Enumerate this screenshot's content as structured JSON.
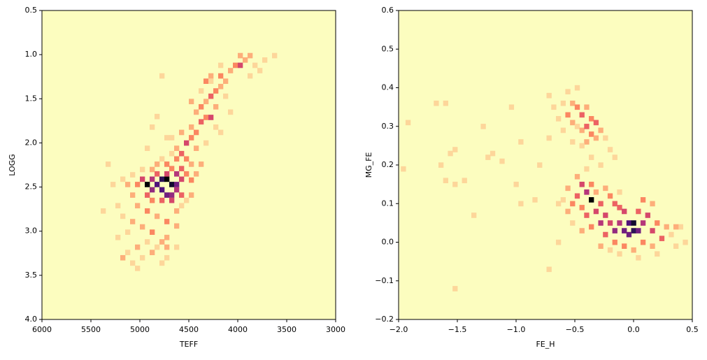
{
  "chart_data": [
    {
      "type": "hist2d",
      "xlabel": "TEFF",
      "ylabel": "LOGG",
      "xlim": [
        6000,
        3000
      ],
      "ylim": [
        4.0,
        0.5
      ],
      "xticks": [
        6000,
        5500,
        5000,
        4500,
        4000,
        3500,
        3000
      ],
      "yticks": [
        0.5,
        {
          "value": 1.0,
          "label": "1.0"
        },
        1.5,
        {
          "value": 2.0,
          "label": "2.0"
        },
        2.5,
        {
          "value": 3.0,
          "label": "3.0"
        },
        3.5,
        {
          "value": 4.0,
          "label": "4.0"
        }
      ],
      "xbin": 50,
      "ybin": 0.0583,
      "vmin": 0,
      "vmax": 12,
      "colorscale": [
        "#fcfdbf",
        "#fec287",
        "#fb8761",
        "#e55064",
        "#b5367a",
        "#812581",
        "#4f127b",
        "#1c1044",
        "#000004"
      ],
      "cells": [
        [
          4925,
          2.47,
          12
        ],
        [
          4825,
          2.47,
          9
        ],
        [
          4775,
          2.41,
          10
        ],
        [
          4725,
          2.41,
          12
        ],
        [
          4675,
          2.47,
          11
        ],
        [
          4625,
          2.47,
          8
        ],
        [
          4875,
          2.53,
          7
        ],
        [
          4775,
          2.53,
          9
        ],
        [
          4725,
          2.59,
          8
        ],
        [
          4675,
          2.59,
          7
        ],
        [
          4625,
          2.53,
          6
        ],
        [
          4975,
          2.41,
          5
        ],
        [
          4875,
          2.41,
          6
        ],
        [
          4575,
          2.41,
          5
        ],
        [
          4625,
          2.35,
          6
        ],
        [
          4725,
          2.35,
          5
        ],
        [
          4825,
          2.35,
          4
        ],
        [
          4575,
          2.59,
          4
        ],
        [
          4925,
          2.59,
          4
        ],
        [
          5025,
          2.47,
          3
        ],
        [
          4675,
          2.65,
          5
        ],
        [
          4775,
          2.65,
          4
        ],
        [
          4875,
          2.65,
          3
        ],
        [
          4575,
          2.29,
          4
        ],
        [
          4525,
          2.35,
          3
        ],
        [
          4675,
          2.29,
          3
        ],
        [
          5075,
          2.59,
          2
        ],
        [
          5125,
          2.47,
          2
        ],
        [
          5175,
          2.41,
          1
        ],
        [
          5025,
          2.71,
          2
        ],
        [
          4925,
          2.77,
          3
        ],
        [
          4825,
          2.83,
          2
        ],
        [
          4725,
          2.89,
          3
        ],
        [
          5075,
          2.89,
          2
        ],
        [
          4975,
          2.95,
          2
        ],
        [
          4875,
          3.01,
          3
        ],
        [
          4725,
          3.07,
          2
        ],
        [
          4775,
          3.12,
          2
        ],
        [
          4925,
          3.12,
          1
        ],
        [
          5025,
          3.18,
          2
        ],
        [
          5125,
          3.24,
          1
        ],
        [
          5175,
          3.3,
          2
        ],
        [
          4875,
          3.24,
          2
        ],
        [
          4725,
          3.3,
          1
        ],
        [
          5075,
          3.36,
          1
        ],
        [
          5025,
          3.42,
          1
        ],
        [
          4975,
          3.3,
          1
        ],
        [
          4625,
          2.77,
          2
        ],
        [
          4825,
          3.18,
          1
        ],
        [
          5125,
          3.01,
          1
        ],
        [
          5175,
          2.83,
          1
        ],
        [
          5325,
          2.24,
          1
        ],
        [
          5275,
          2.47,
          1
        ],
        [
          5375,
          2.77,
          1
        ],
        [
          5225,
          2.71,
          1
        ],
        [
          5225,
          3.07,
          1
        ],
        [
          4625,
          3.18,
          1
        ],
        [
          4625,
          2.18,
          3
        ],
        [
          4575,
          2.12,
          4
        ],
        [
          4525,
          2.18,
          3
        ],
        [
          4475,
          2.24,
          2
        ],
        [
          4625,
          2.06,
          2
        ],
        [
          4525,
          2.0,
          5
        ],
        [
          4475,
          1.94,
          3
        ],
        [
          4425,
          2.06,
          2
        ],
        [
          4575,
          1.88,
          2
        ],
        [
          4475,
          1.82,
          2
        ],
        [
          4425,
          1.88,
          3
        ],
        [
          4375,
          1.76,
          4
        ],
        [
          4325,
          1.71,
          3
        ],
        [
          4425,
          1.65,
          2
        ],
        [
          4375,
          1.59,
          3
        ],
        [
          4275,
          1.71,
          5
        ],
        [
          4225,
          1.59,
          2
        ],
        [
          4325,
          1.53,
          2
        ],
        [
          4275,
          1.47,
          4
        ],
        [
          4225,
          1.41,
          3
        ],
        [
          4175,
          1.36,
          2
        ],
        [
          4325,
          1.3,
          3
        ],
        [
          4275,
          1.24,
          2
        ],
        [
          4125,
          1.3,
          2
        ],
        [
          4175,
          1.24,
          3
        ],
        [
          4075,
          1.18,
          2
        ],
        [
          4025,
          1.12,
          3
        ],
        [
          3975,
          1.12,
          5
        ],
        [
          3925,
          1.06,
          2
        ],
        [
          3875,
          1.01,
          2
        ],
        [
          3975,
          1.01,
          2
        ],
        [
          3825,
          1.12,
          1
        ],
        [
          3725,
          1.06,
          1
        ],
        [
          3775,
          1.18,
          1
        ],
        [
          3625,
          1.01,
          1
        ],
        [
          3875,
          1.24,
          1
        ],
        [
          4125,
          1.47,
          1
        ],
        [
          4075,
          1.65,
          1
        ],
        [
          4225,
          1.82,
          1
        ],
        [
          4175,
          1.88,
          1
        ],
        [
          4325,
          2.0,
          1
        ],
        [
          4375,
          2.24,
          2
        ],
        [
          4675,
          1.94,
          1
        ],
        [
          4825,
          1.7,
          1
        ],
        [
          4875,
          1.82,
          1
        ],
        [
          4925,
          2.06,
          1
        ],
        [
          4725,
          1.94,
          1
        ],
        [
          4675,
          2.12,
          1
        ],
        [
          4775,
          2.18,
          1
        ],
        [
          4825,
          2.24,
          2
        ],
        [
          4725,
          2.24,
          3
        ],
        [
          4875,
          2.3,
          2
        ],
        [
          4975,
          2.3,
          1
        ],
        [
          5075,
          2.36,
          1
        ],
        [
          4475,
          2.42,
          3
        ],
        [
          4425,
          2.35,
          2
        ],
        [
          4475,
          2.59,
          2
        ],
        [
          4525,
          2.65,
          1
        ],
        [
          4575,
          2.71,
          1
        ],
        [
          4625,
          2.94,
          2
        ],
        [
          4725,
          3.18,
          2
        ],
        [
          4775,
          3.36,
          1
        ],
        [
          4475,
          1.53,
          2
        ],
        [
          4375,
          1.41,
          1
        ],
        [
          4275,
          1.3,
          1
        ],
        [
          4175,
          1.12,
          1
        ],
        [
          4775,
          1.24,
          1
        ]
      ]
    },
    {
      "type": "hist2d",
      "xlabel": "FE_H",
      "ylabel": "MG_FE",
      "xlim": [
        -2.0,
        0.5
      ],
      "ylim": [
        -0.2,
        0.6
      ],
      "xticks": [
        {
          "value": -2.0,
          "label": "−2.0"
        },
        {
          "value": -1.5,
          "label": "−1.5"
        },
        {
          "value": -1.0,
          "label": "−1.0"
        },
        {
          "value": -0.5,
          "label": "−0.5"
        },
        {
          "value": 0.0,
          "label": "0.0"
        },
        0.5
      ],
      "yticks": [
        {
          "value": -0.2,
          "label": "−0.2"
        },
        {
          "value": -0.1,
          "label": "−0.1"
        },
        {
          "value": 0.0,
          "label": "0.0"
        },
        0.1,
        0.2,
        0.3,
        0.4,
        0.5,
        0.6
      ],
      "xbin": 0.0417,
      "ybin": 0.0133,
      "vmin": 0,
      "vmax": 12,
      "colorscale": [
        "#fcfdbf",
        "#fec287",
        "#fb8761",
        "#e55064",
        "#b5367a",
        "#812581",
        "#4f127b",
        "#1c1044",
        "#000004"
      ],
      "cells": [
        [
          -0.6,
          0.36,
          1
        ],
        [
          -0.56,
          0.33,
          3
        ],
        [
          -0.52,
          0.36,
          2
        ],
        [
          -0.48,
          0.35,
          3
        ],
        [
          -0.44,
          0.33,
          4
        ],
        [
          -0.4,
          0.35,
          2
        ],
        [
          -0.52,
          0.31,
          2
        ],
        [
          -0.48,
          0.3,
          1
        ],
        [
          -0.44,
          0.29,
          2
        ],
        [
          -0.4,
          0.3,
          4
        ],
        [
          -0.36,
          0.32,
          3
        ],
        [
          -0.32,
          0.31,
          4
        ],
        [
          -0.36,
          0.28,
          3
        ],
        [
          -0.32,
          0.27,
          2
        ],
        [
          -0.28,
          0.29,
          2
        ],
        [
          -0.24,
          0.27,
          1
        ],
        [
          -0.4,
          0.26,
          2
        ],
        [
          -0.44,
          0.25,
          1
        ],
        [
          -0.2,
          0.24,
          1
        ],
        [
          -0.16,
          0.22,
          1
        ],
        [
          -0.6,
          0.29,
          1
        ],
        [
          -0.64,
          0.32,
          1
        ],
        [
          -0.68,
          0.35,
          1
        ],
        [
          -0.56,
          0.39,
          1
        ],
        [
          -0.48,
          0.4,
          1
        ],
        [
          -0.72,
          0.38,
          1
        ],
        [
          -0.52,
          0.26,
          1
        ],
        [
          -0.36,
          0.22,
          1
        ],
        [
          -0.28,
          0.2,
          1
        ],
        [
          -1.96,
          0.19,
          1
        ],
        [
          -1.92,
          0.31,
          1
        ],
        [
          -1.68,
          0.36,
          1
        ],
        [
          -1.6,
          0.36,
          1
        ],
        [
          -1.6,
          0.16,
          1
        ],
        [
          -1.64,
          0.2,
          1
        ],
        [
          -1.52,
          0.24,
          1
        ],
        [
          -1.52,
          0.15,
          1
        ],
        [
          -1.44,
          0.16,
          1
        ],
        [
          -1.36,
          0.07,
          1
        ],
        [
          -1.28,
          0.3,
          1
        ],
        [
          -1.24,
          0.22,
          1
        ],
        [
          -1.2,
          0.23,
          1
        ],
        [
          -1.12,
          0.21,
          1
        ],
        [
          -1.0,
          0.15,
          1
        ],
        [
          -0.96,
          0.26,
          1
        ],
        [
          -1.04,
          0.35,
          1
        ],
        [
          -0.8,
          0.2,
          1
        ],
        [
          -0.72,
          0.27,
          1
        ],
        [
          -0.84,
          0.11,
          1
        ],
        [
          -0.72,
          -0.07,
          1
        ],
        [
          -1.52,
          -0.12,
          1
        ],
        [
          -1.56,
          0.23,
          1
        ],
        [
          -0.96,
          0.1,
          1
        ],
        [
          -0.36,
          0.11,
          12
        ],
        [
          -0.4,
          0.13,
          6
        ],
        [
          -0.44,
          0.15,
          5
        ],
        [
          -0.48,
          0.12,
          4
        ],
        [
          -0.52,
          0.1,
          3
        ],
        [
          -0.56,
          0.08,
          2
        ],
        [
          -0.44,
          0.09,
          3
        ],
        [
          -0.4,
          0.07,
          4
        ],
        [
          -0.32,
          0.08,
          5
        ],
        [
          -0.28,
          0.1,
          4
        ],
        [
          -0.24,
          0.07,
          5
        ],
        [
          -0.28,
          0.05,
          6
        ],
        [
          -0.2,
          0.05,
          5
        ],
        [
          -0.16,
          0.03,
          7
        ],
        [
          -0.12,
          0.05,
          6
        ],
        [
          -0.08,
          0.03,
          8
        ],
        [
          -0.04,
          0.05,
          9
        ],
        [
          0.0,
          0.05,
          11
        ],
        [
          0.0,
          0.03,
          10
        ],
        [
          0.04,
          0.03,
          8
        ],
        [
          -0.04,
          0.02,
          8
        ],
        [
          0.08,
          0.05,
          6
        ],
        [
          0.12,
          0.07,
          5
        ],
        [
          0.16,
          0.03,
          5
        ],
        [
          0.2,
          0.05,
          3
        ],
        [
          0.24,
          0.01,
          4
        ],
        [
          0.28,
          0.04,
          2
        ],
        [
          0.32,
          0.02,
          1
        ],
        [
          0.36,
          -0.01,
          1
        ],
        [
          -0.12,
          0.09,
          4
        ],
        [
          -0.08,
          0.08,
          5
        ],
        [
          0.04,
          0.08,
          4
        ],
        [
          0.08,
          0.11,
          3
        ],
        [
          0.16,
          0.1,
          2
        ],
        [
          -0.2,
          0.12,
          3
        ],
        [
          -0.16,
          0.1,
          4
        ],
        [
          -0.36,
          0.15,
          3
        ],
        [
          -0.32,
          0.13,
          2
        ],
        [
          -0.48,
          0.17,
          2
        ],
        [
          -0.4,
          0.19,
          1
        ],
        [
          -0.56,
          0.14,
          2
        ],
        [
          -0.6,
          0.11,
          1
        ],
        [
          -0.64,
          0.1,
          1
        ],
        [
          -0.52,
          0.05,
          1
        ],
        [
          -0.44,
          0.03,
          2
        ],
        [
          -0.36,
          0.04,
          3
        ],
        [
          -0.24,
          0.02,
          4
        ],
        [
          -0.16,
          0.0,
          3
        ],
        [
          -0.08,
          -0.01,
          3
        ],
        [
          0.0,
          -0.02,
          2
        ],
        [
          0.08,
          0.0,
          3
        ],
        [
          0.16,
          -0.01,
          2
        ],
        [
          0.2,
          -0.03,
          1
        ],
        [
          -0.28,
          -0.01,
          2
        ],
        [
          -0.2,
          -0.02,
          1
        ],
        [
          -0.12,
          -0.03,
          1
        ],
        [
          0.04,
          -0.04,
          1
        ],
        [
          -0.64,
          0.0,
          1
        ],
        [
          0.44,
          0.0,
          1
        ],
        [
          0.4,
          0.04,
          1
        ],
        [
          0.36,
          0.04,
          2
        ],
        [
          -0.24,
          0.14,
          2
        ],
        [
          -0.12,
          0.13,
          1
        ]
      ]
    }
  ]
}
